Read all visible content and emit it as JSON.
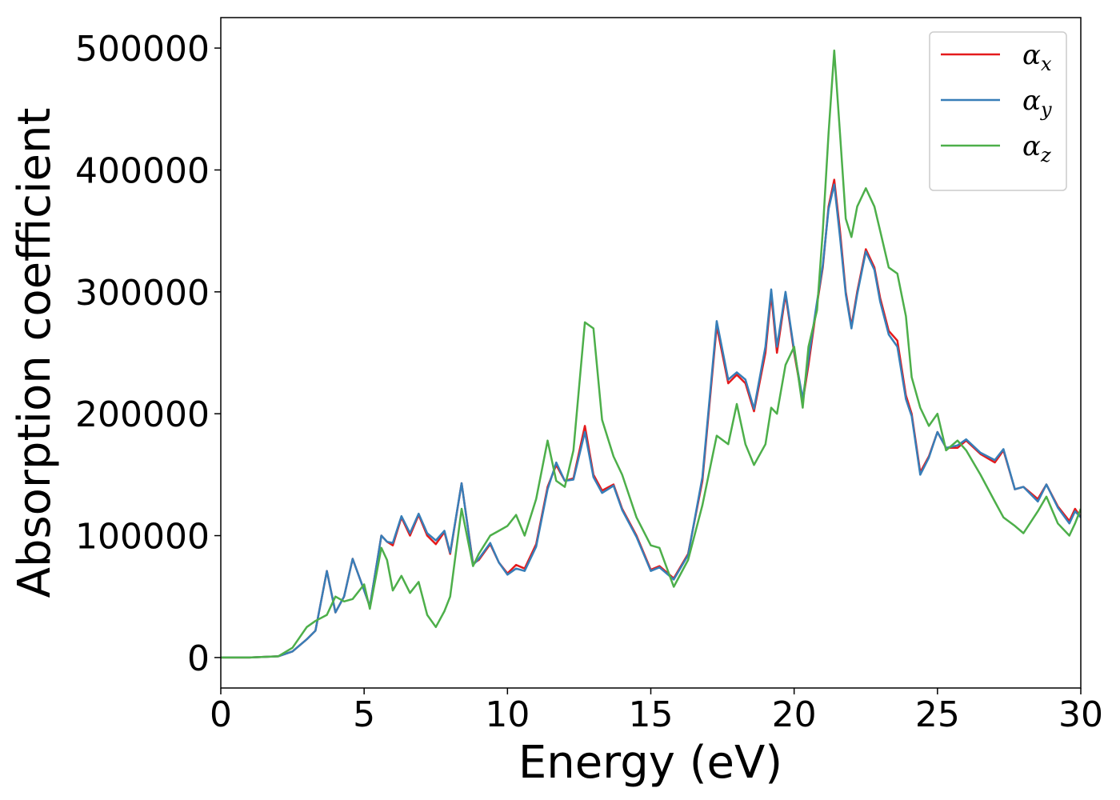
{
  "chart_data": {
    "type": "line",
    "xlabel": "Energy (eV)",
    "ylabel": "Absorption coefficient",
    "x": [
      0,
      1,
      2,
      2.5,
      3,
      3.3,
      3.7,
      4.0,
      4.3,
      4.6,
      5.0,
      5.2,
      5.6,
      5.8,
      6.0,
      6.3,
      6.6,
      6.9,
      7.2,
      7.5,
      7.8,
      8.0,
      8.4,
      8.8,
      9.0,
      9.4,
      9.7,
      10.0,
      10.3,
      10.6,
      11.0,
      11.4,
      11.7,
      12.0,
      12.3,
      12.7,
      13.0,
      13.3,
      13.7,
      14.0,
      14.5,
      15.0,
      15.3,
      15.8,
      16.3,
      16.8,
      17.3,
      17.7,
      18.0,
      18.3,
      18.6,
      19.0,
      19.2,
      19.4,
      19.7,
      20.0,
      20.3,
      20.5,
      20.8,
      21.0,
      21.2,
      21.4,
      21.6,
      21.8,
      22.0,
      22.2,
      22.5,
      22.8,
      23.0,
      23.3,
      23.6,
      23.9,
      24.1,
      24.4,
      24.7,
      25.0,
      25.3,
      25.7,
      26.0,
      26.5,
      27.0,
      27.3,
      27.7,
      28.0,
      28.5,
      28.8,
      29.2,
      29.6,
      29.8,
      30.0
    ],
    "series": [
      {
        "name": "αx",
        "color": "#e41a1c",
        "values": [
          0,
          0,
          1000,
          5000,
          15000,
          22000,
          71000,
          37000,
          50000,
          81000,
          55000,
          42000,
          100000,
          95000,
          92000,
          115000,
          100000,
          117000,
          100000,
          93000,
          103000,
          85000,
          143000,
          77000,
          80000,
          93000,
          78000,
          69000,
          76000,
          73000,
          93000,
          140000,
          158000,
          145000,
          147000,
          190000,
          150000,
          137000,
          142000,
          122000,
          100000,
          72000,
          75000,
          65000,
          85000,
          145000,
          272000,
          225000,
          232000,
          225000,
          202000,
          250000,
          298000,
          250000,
          298000,
          250000,
          210000,
          240000,
          290000,
          320000,
          370000,
          392000,
          350000,
          300000,
          272000,
          300000,
          335000,
          320000,
          295000,
          268000,
          260000,
          215000,
          200000,
          152000,
          165000,
          185000,
          172000,
          172000,
          178000,
          167000,
          160000,
          170000,
          138000,
          140000,
          130000,
          142000,
          124000,
          112000,
          122000,
          115000
        ]
      },
      {
        "name": "αy",
        "color": "#377eb8",
        "values": [
          0,
          0,
          1000,
          5000,
          15000,
          22000,
          71000,
          37000,
          50000,
          81000,
          55000,
          42000,
          100000,
          95000,
          94000,
          116000,
          102000,
          118000,
          102000,
          96000,
          104000,
          86000,
          143000,
          76000,
          81000,
          94000,
          78000,
          68000,
          73000,
          71000,
          91000,
          138000,
          160000,
          145000,
          146000,
          185000,
          148000,
          135000,
          141000,
          121000,
          99000,
          71000,
          74000,
          64000,
          84000,
          148000,
          276000,
          228000,
          234000,
          228000,
          204000,
          255000,
          302000,
          255000,
          300000,
          252000,
          212000,
          245000,
          292000,
          322000,
          368000,
          388000,
          345000,
          298000,
          270000,
          298000,
          333000,
          318000,
          292000,
          265000,
          255000,
          212000,
          198000,
          150000,
          164000,
          185000,
          172000,
          174000,
          179000,
          168000,
          162000,
          171000,
          138000,
          140000,
          128000,
          142000,
          123000,
          110000,
          120000,
          115000
        ]
      },
      {
        "name": "αz",
        "color": "#4daf4a",
        "values": [
          0,
          0,
          1000,
          8000,
          25000,
          30000,
          35000,
          50000,
          46000,
          48000,
          60000,
          40000,
          90000,
          80000,
          55000,
          67000,
          53000,
          62000,
          35000,
          25000,
          38000,
          50000,
          122000,
          75000,
          85000,
          100000,
          104000,
          108000,
          117000,
          100000,
          130000,
          178000,
          145000,
          140000,
          170000,
          275000,
          270000,
          195000,
          165000,
          150000,
          115000,
          92000,
          90000,
          58000,
          80000,
          125000,
          182000,
          175000,
          208000,
          175000,
          158000,
          175000,
          205000,
          200000,
          240000,
          255000,
          205000,
          255000,
          285000,
          350000,
          430000,
          498000,
          430000,
          360000,
          345000,
          370000,
          385000,
          370000,
          350000,
          320000,
          315000,
          280000,
          230000,
          205000,
          190000,
          200000,
          170000,
          178000,
          170000,
          150000,
          128000,
          115000,
          108000,
          102000,
          120000,
          132000,
          110000,
          100000,
          110000,
          122000
        ]
      }
    ],
    "xlim": [
      0,
      30
    ],
    "xticks": [
      0,
      5,
      10,
      15,
      20,
      25,
      30
    ],
    "ylim": [
      -25000,
      525000
    ],
    "yticks": [
      0,
      100000,
      200000,
      300000,
      400000,
      500000
    ],
    "legend": "upper right",
    "grid": false
  }
}
